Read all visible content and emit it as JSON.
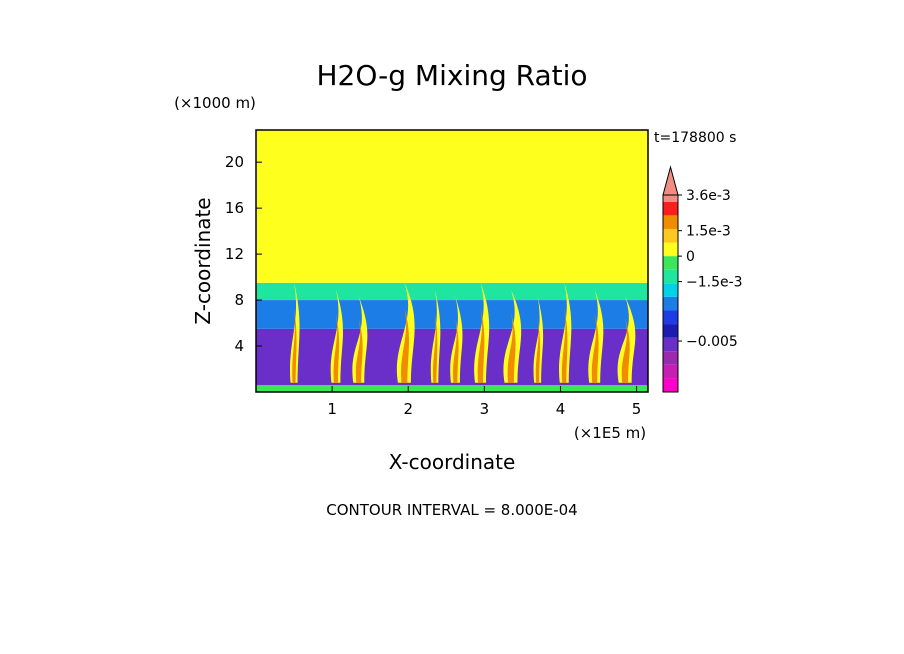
{
  "chart_data": {
    "type": "heatmap",
    "title": "H2O-g Mixing Ratio",
    "xlabel": "X-coordinate",
    "ylabel": "Z-coordinate",
    "x_unit": "(×1E5 m)",
    "y_unit": "(×1000 m)",
    "time_label": "t=178800 s",
    "xlim": [
      0,
      5.15
    ],
    "ylim": [
      0,
      22.8
    ],
    "x_ticks": [
      1,
      2,
      3,
      4,
      5
    ],
    "y_ticks": [
      4,
      8,
      12,
      16,
      20
    ],
    "contour_interval_text": "CONTOUR INTERVAL = 8.000E-04",
    "colorbar": {
      "levels": [
        {
          "color": "#ff00c8",
          "value": -0.0072
        },
        {
          "color": "#c81eb4",
          "value": -0.0064
        },
        {
          "color": "#9a2ab0",
          "value": -0.0056
        },
        {
          "color": "#6a2fc8",
          "value": -0.0048
        },
        {
          "color": "#1c1cb4",
          "value": -0.004
        },
        {
          "color": "#1f3be6",
          "value": -0.0032
        },
        {
          "color": "#1c7de6",
          "value": -0.0024
        },
        {
          "color": "#00d2e6",
          "value": -0.0016
        },
        {
          "color": "#1ee6a0",
          "value": -0.0008
        },
        {
          "color": "#3ce65a",
          "value": 0.0
        },
        {
          "color": "#ffff1e",
          "value": 0.0008
        },
        {
          "color": "#ffc81e",
          "value": 0.0016
        },
        {
          "color": "#f08c00",
          "value": 0.0024
        },
        {
          "color": "#ff1e1e",
          "value": 0.0032
        },
        {
          "color": "#f08c82",
          "value": 0.0036
        }
      ],
      "labels": [
        {
          "text": "3.6e-3",
          "value": 0.0036
        },
        {
          "text": "1.5e-3",
          "value": 0.0015
        },
        {
          "text": "0",
          "value": 0.0
        },
        {
          "text": "−1.5e-3",
          "value": -0.0015
        },
        {
          "text": "−0.005",
          "value": -0.005
        }
      ]
    },
    "regions": [
      {
        "name": "surface-layer",
        "z_range": [
          0,
          0.6
        ],
        "value": 0.0
      },
      {
        "name": "lower-dry-layer",
        "z_range": [
          0.6,
          5.5
        ],
        "value": -0.0052
      },
      {
        "name": "mid-layer",
        "z_range": [
          5.5,
          8.0
        ],
        "value": -0.003
      },
      {
        "name": "transition-layer",
        "z_range": [
          8.0,
          9.5
        ],
        "value": -0.001
      },
      {
        "name": "upper-layer",
        "z_range": [
          9.5,
          22.8
        ],
        "value": 0.0004
      }
    ],
    "plumes_x": [
      0.5,
      1.05,
      1.35,
      1.95,
      2.35,
      2.62,
      2.95,
      3.35,
      3.7,
      4.05,
      4.45,
      4.85
    ]
  }
}
